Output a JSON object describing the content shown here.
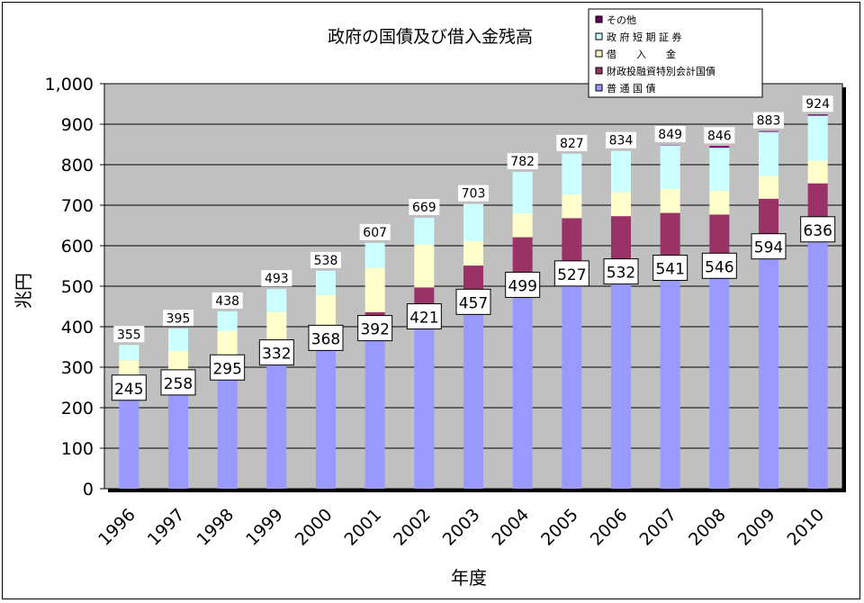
{
  "chart_data": {
    "type": "bar",
    "stacked": true,
    "title": "政府の国債及び借入金残高",
    "xlabel": "年度",
    "ylabel": "兆円",
    "ylim": [
      0,
      1000
    ],
    "yticks": [
      "0",
      "100",
      "200",
      "300",
      "400",
      "500",
      "600",
      "700",
      "800",
      "900",
      "1,000"
    ],
    "grid": true,
    "legend_position": "top-right",
    "categories": [
      "1996",
      "1997",
      "1998",
      "1999",
      "2000",
      "2001",
      "2002",
      "2003",
      "2004",
      "2005",
      "2006",
      "2007",
      "2008",
      "2009",
      "2010"
    ],
    "series": [
      {
        "name": "普 通 国 債",
        "color": "#9999ff",
        "values": [
          245,
          258,
          295,
          332,
          368,
          392,
          421,
          457,
          499,
          527,
          532,
          541,
          546,
          594,
          636
        ]
      },
      {
        "name": "財政投融資特別会計国債",
        "color": "#993366",
        "values": [
          0,
          0,
          0,
          0,
          0,
          44,
          76,
          94,
          122,
          141,
          141,
          140,
          131,
          122,
          118
        ]
      },
      {
        "name": "借　　入　　金",
        "color": "#ffffcc",
        "values": [
          72,
          82,
          95,
          104,
          110,
          110,
          106,
          60,
          59,
          59,
          59,
          59,
          59,
          56,
          56
        ]
      },
      {
        "name": "政 府 短 期 証 券",
        "color": "#ccffff",
        "values": [
          38,
          55,
          48,
          57,
          60,
          61,
          66,
          92,
          102,
          100,
          102,
          108,
          106,
          109,
          111
        ]
      },
      {
        "name": "その他",
        "color": "#660066",
        "values": [
          0,
          0,
          0,
          0,
          0,
          0,
          0,
          0,
          0,
          0,
          0,
          1,
          4,
          2,
          3
        ]
      }
    ],
    "bar_labels": {
      "base": [
        245,
        258,
        295,
        332,
        368,
        392,
        421,
        457,
        499,
        527,
        532,
        541,
        546,
        594,
        636
      ],
      "total": [
        355,
        395,
        438,
        493,
        538,
        607,
        669,
        703,
        782,
        827,
        834,
        849,
        846,
        883,
        924
      ]
    },
    "legend_order": [
      4,
      3,
      2,
      1,
      0
    ],
    "plot_bg": "#c0c0c0"
  }
}
